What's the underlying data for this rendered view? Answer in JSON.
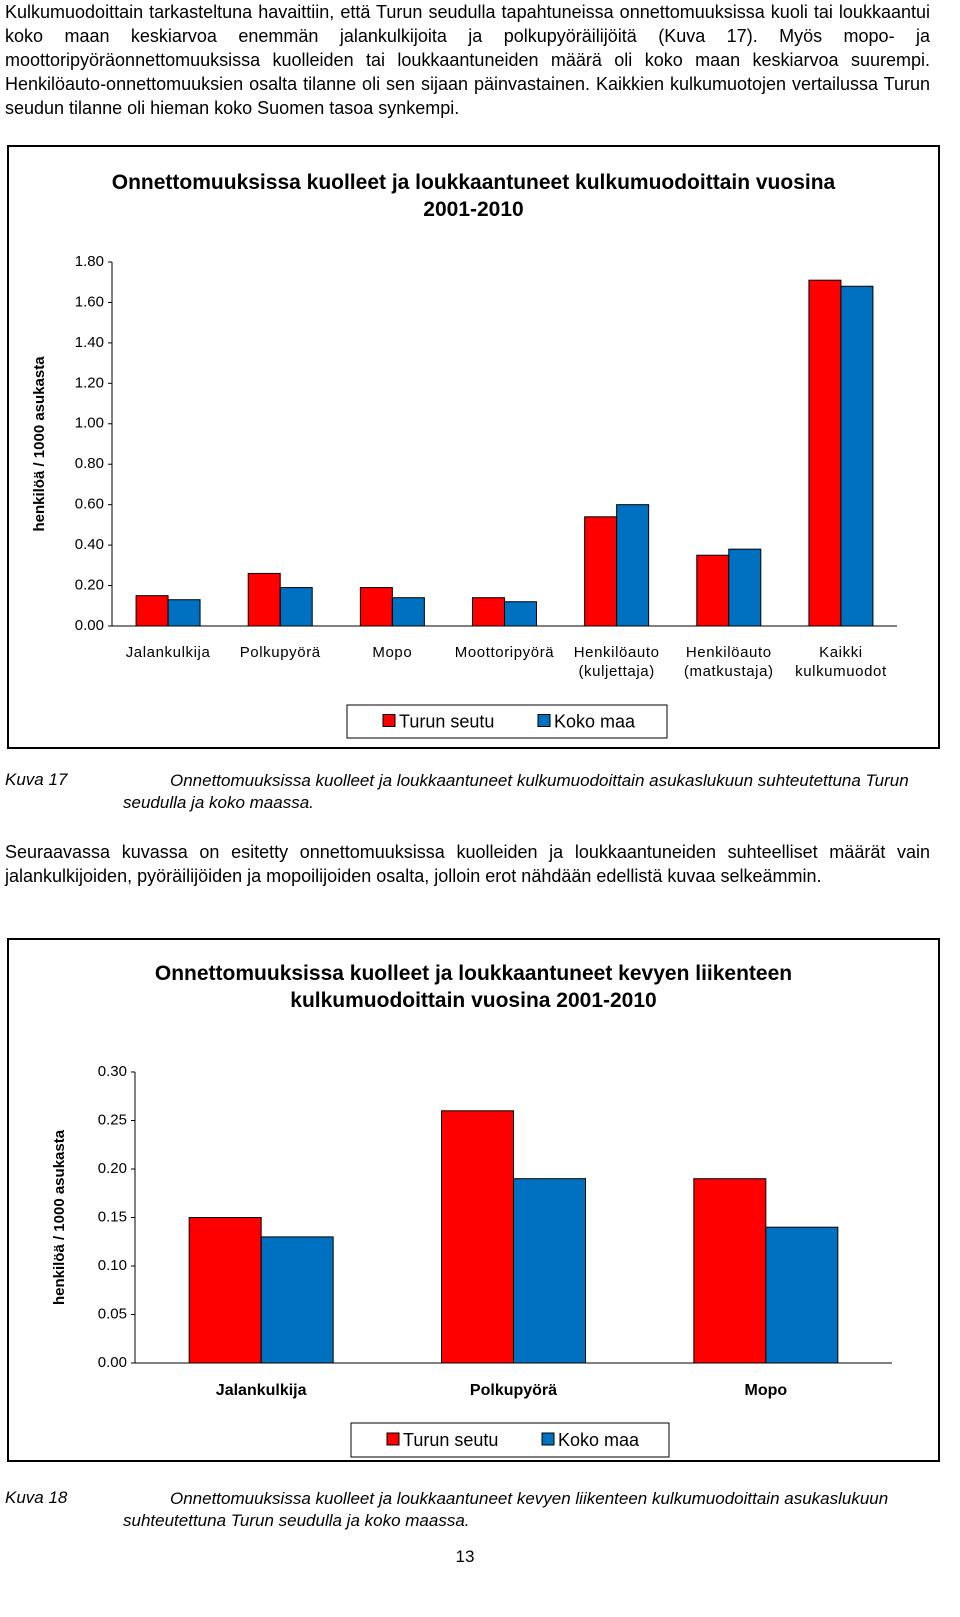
{
  "paragraphs": [
    "Kulkumuodoittain tarkasteltuna havaittiin, että Turun seudulla tapahtuneissa onnettomuuksissa kuoli tai loukkaantui koko maan keskiarvoa enemmän jalankulkijoita ja polkupyöräilijöitä (Kuva 17). Myös mopo- ja moottoripyöräonnettomuuksissa kuolleiden tai loukkaantuneiden määrä oli koko maan keskiarvoa suurempi. Henkilöauto-onnettomuuksien osalta tilanne oli sen sijaan päinvastainen. Kaikkien kulkumuotojen vertailussa Turun seudun tilanne oli hieman koko Suomen tasoa synkempi.",
    "Seuraavassa kuvassa on esitetty onnettomuuksissa kuolleiden ja loukkaantuneiden suhteelliset määrät vain jalankulkijoiden, pyöräilijöiden ja mopoilijoiden osalta, jolloin erot nähdään edellistä kuvaa selkeämmin."
  ],
  "chart_data": [
    {
      "type": "bar",
      "title": "Onnettomuuksissa kuolleet ja loukkaantuneet kulkumuodoittain vuosina 2001-2010",
      "y_label": "henkilöä / 1000 asukasta",
      "categories": [
        "Jalankulkija",
        "Polkupyörä",
        "Mopo",
        "Moottoripyörä",
        "Henkilöauto (kuljettaja)",
        "Henkilöauto (matkustaja)",
        "Kaikki kulkumuodot"
      ],
      "series": [
        {
          "name": "Turun seutu",
          "color": "#ff0000",
          "values": [
            0.15,
            0.26,
            0.19,
            0.14,
            0.54,
            0.35,
            1.71
          ]
        },
        {
          "name": "Koko maa",
          "color": "#0070c0",
          "values": [
            0.13,
            0.19,
            0.14,
            0.12,
            0.6,
            0.38,
            1.68
          ]
        }
      ],
      "ylim": [
        0,
        1.8
      ],
      "yticks": [
        {
          "value": 0,
          "label": "0.00"
        },
        {
          "value": 0.2,
          "label": "0.20"
        },
        {
          "value": 0.4,
          "label": "0.40"
        },
        {
          "value": 0.6,
          "label": "0.60"
        },
        {
          "value": 0.8,
          "label": "0.80"
        },
        {
          "value": 1,
          "label": "1.00"
        },
        {
          "value": 1.2,
          "label": "1.20"
        },
        {
          "value": 1.4,
          "label": "1.40"
        },
        {
          "value": 1.6,
          "label": "1.60"
        },
        {
          "value": 1.8,
          "label": "1.80"
        }
      ],
      "grid": false,
      "legend": "bottom"
    },
    {
      "type": "bar",
      "title": "Onnettomuuksissa kuolleet ja loukkaantuneet kevyen liikenteen kulkumuodoittain vuosina 2001-2010",
      "y_label": "henkilöä / 1000 asukasta",
      "categories": [
        "Jalankulkija",
        "Polkupyörä",
        "Mopo"
      ],
      "series": [
        {
          "name": "Turun seutu",
          "color": "#ff0000",
          "values": [
            0.15,
            0.26,
            0.19
          ]
        },
        {
          "name": "Koko maa",
          "color": "#0070c0",
          "values": [
            0.13,
            0.19,
            0.14
          ]
        }
      ],
      "ylim": [
        0,
        0.3
      ],
      "yticks": [
        {
          "value": 0,
          "label": "0.00"
        },
        {
          "value": 0.05,
          "label": "0.05"
        },
        {
          "value": 0.1,
          "label": "0.10"
        },
        {
          "value": 0.15,
          "label": "0.15"
        },
        {
          "value": 0.2,
          "label": "0.20"
        },
        {
          "value": 0.25,
          "label": "0.25"
        },
        {
          "value": 0.3,
          "label": "0.30"
        }
      ],
      "grid": false,
      "legend": "bottom"
    }
  ],
  "captions": [
    {
      "label": "Kuva 17",
      "text": "Onnettomuuksissa kuolleet ja loukkaantuneet kulkumuodoittain asukaslukuun suhteutettuna Turun seudulla ja koko maassa."
    },
    {
      "label": "Kuva 18",
      "text": "Onnettomuuksissa kuolleet ja loukkaantuneet kevyen liikenteen kulkumuodoittain asukaslukuun suhteutettuna Turun seudulla ja koko maassa."
    }
  ],
  "page_number": 13
}
